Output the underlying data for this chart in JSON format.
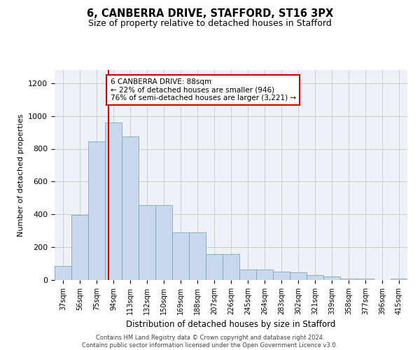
{
  "title1": "6, CANBERRA DRIVE, STAFFORD, ST16 3PX",
  "title2": "Size of property relative to detached houses in Stafford",
  "xlabel": "Distribution of detached houses by size in Stafford",
  "ylabel": "Number of detached properties",
  "categories": [
    "37sqm",
    "56sqm",
    "75sqm",
    "94sqm",
    "113sqm",
    "132sqm",
    "150sqm",
    "169sqm",
    "188sqm",
    "207sqm",
    "226sqm",
    "245sqm",
    "264sqm",
    "283sqm",
    "302sqm",
    "321sqm",
    "339sqm",
    "358sqm",
    "377sqm",
    "396sqm",
    "415sqm"
  ],
  "values": [
    85,
    395,
    845,
    960,
    875,
    455,
    455,
    290,
    290,
    160,
    160,
    65,
    65,
    50,
    45,
    30,
    20,
    8,
    8,
    0,
    8
  ],
  "bar_color": "#c8d8ee",
  "bar_edge_color": "#7aaabb",
  "vline_color": "#cc0000",
  "vline_pos": 2.72,
  "annotation_text": "6 CANBERRA DRIVE: 88sqm\n← 22% of detached houses are smaller (946)\n76% of semi-detached houses are larger (3,221) →",
  "annotation_box_color": "#ffffff",
  "annotation_box_edge": "#cc0000",
  "ylim": [
    0,
    1280
  ],
  "yticks": [
    0,
    200,
    400,
    600,
    800,
    1000,
    1200
  ],
  "footer_text": "Contains HM Land Registry data © Crown copyright and database right 2024.\nContains public sector information licensed under the Open Government Licence v3.0.",
  "grid_color": "#cccccc",
  "background_color": "#eef2f8"
}
